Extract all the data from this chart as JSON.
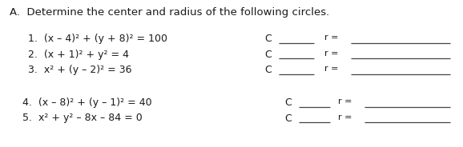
{
  "title": "A.  Determine the center and radius of the following circles.",
  "lines_left_123": [
    "1.  (x – 4)² + (y + 8)² = 100",
    "2.  (x + 1)² + y² = 4",
    "3.  x² + (y – 2)² = 36"
  ],
  "lines_left_45": [
    "4.  (x – 8)² + (y – 1)² = 40",
    "5.  x² + y² – 8x – 84 = 0"
  ],
  "bg_color": "#ffffff",
  "text_color": "#1a1a1a",
  "font_size_title": 9.5,
  "font_size_body": 9.0,
  "font_size_blank_label": 8.0,
  "line_color": "#444444",
  "line_width": 0.9
}
